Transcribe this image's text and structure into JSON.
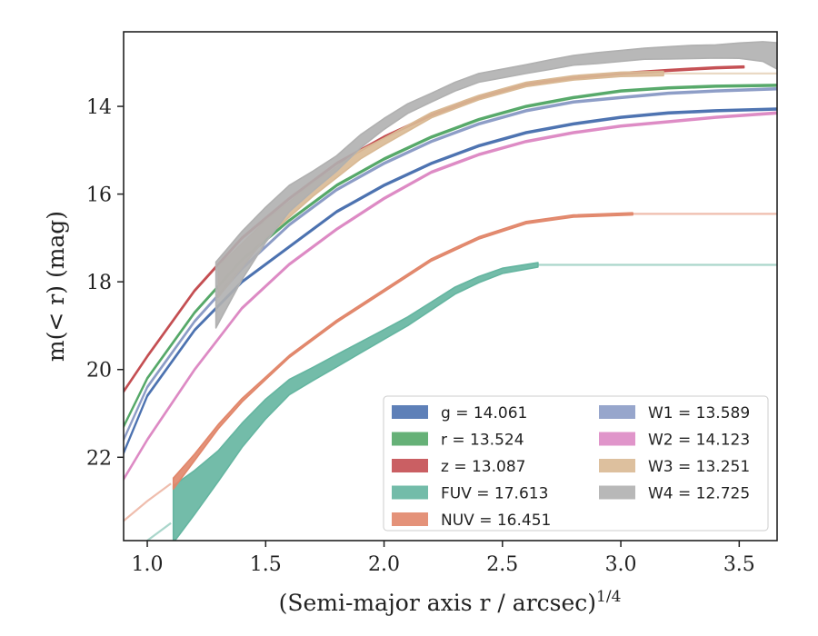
{
  "chart_data": {
    "type": "line",
    "xlabel": "(Semi-major axis r / arcsec)",
    "xlabel_sup": "1/4",
    "ylabel": "m(< r) (mag)",
    "xlim": [
      0.9,
      3.66
    ],
    "ylim": [
      23.9,
      12.3
    ],
    "xticks": [
      1.0,
      1.5,
      2.0,
      2.5,
      3.0,
      3.5
    ],
    "yticks": [
      14,
      16,
      18,
      20,
      22
    ],
    "xtick_labels": [
      "1.0",
      "1.5",
      "2.0",
      "2.5",
      "3.0",
      "3.5"
    ],
    "ytick_labels": [
      "14",
      "16",
      "18",
      "20",
      "22"
    ],
    "legend_position": "lower-right",
    "series": [
      {
        "name": "g = 14.061",
        "band": "g",
        "total_mag": 14.061,
        "color": "#4c72b0",
        "x": [
          0.9,
          1.0,
          1.2,
          1.4,
          1.6,
          1.8,
          2.0,
          2.2,
          2.4,
          2.6,
          2.8,
          3.0,
          3.2,
          3.4,
          3.66
        ],
        "y": [
          21.9,
          20.6,
          19.1,
          18.0,
          17.2,
          16.4,
          15.8,
          15.3,
          14.9,
          14.6,
          14.4,
          14.25,
          14.15,
          14.1,
          14.06
        ],
        "width": [
          0.04,
          0.04,
          0.04,
          0.04,
          0.04,
          0.04,
          0.04,
          0.04,
          0.04,
          0.04,
          0.04,
          0.04,
          0.04,
          0.04,
          0.04
        ],
        "x_faint_after": 3.66
      },
      {
        "name": "r = 13.524",
        "band": "r",
        "total_mag": 13.524,
        "color": "#55a868",
        "x": [
          0.9,
          1.0,
          1.2,
          1.4,
          1.6,
          1.8,
          2.0,
          2.2,
          2.4,
          2.6,
          2.8,
          3.0,
          3.2,
          3.4,
          3.66
        ],
        "y": [
          21.3,
          20.2,
          18.7,
          17.5,
          16.6,
          15.8,
          15.2,
          14.7,
          14.3,
          14.0,
          13.8,
          13.65,
          13.58,
          13.54,
          13.52
        ],
        "width": [
          0.04,
          0.04,
          0.04,
          0.04,
          0.04,
          0.04,
          0.04,
          0.04,
          0.04,
          0.04,
          0.04,
          0.04,
          0.04,
          0.04,
          0.04
        ],
        "x_faint_after": 3.66
      },
      {
        "name": "z = 13.087",
        "band": "z",
        "total_mag": 13.087,
        "color": "#c44e52",
        "x": [
          0.9,
          1.0,
          1.2,
          1.4,
          1.6,
          1.8,
          2.0,
          2.2,
          2.4,
          2.6,
          2.8,
          3.0,
          3.2,
          3.4,
          3.52
        ],
        "y": [
          20.5,
          19.7,
          18.2,
          17.0,
          16.1,
          15.3,
          14.7,
          14.2,
          13.8,
          13.5,
          13.35,
          13.25,
          13.18,
          13.12,
          13.1
        ],
        "width": [
          0.04,
          0.04,
          0.04,
          0.04,
          0.04,
          0.04,
          0.04,
          0.04,
          0.04,
          0.04,
          0.04,
          0.04,
          0.04,
          0.04,
          0.04
        ],
        "x_faint_after": 3.52
      },
      {
        "name": "FUV = 17.613",
        "band": "FUV",
        "total_mag": 17.613,
        "color": "#64b5a0",
        "x": [
          1.11,
          1.2,
          1.3,
          1.4,
          1.5,
          1.6,
          1.7,
          1.8,
          1.9,
          2.0,
          2.1,
          2.2,
          2.3,
          2.4,
          2.5,
          2.65
        ],
        "y": [
          23.3,
          22.8,
          22.2,
          21.5,
          20.9,
          20.4,
          20.1,
          19.8,
          19.5,
          19.2,
          18.9,
          18.55,
          18.2,
          17.95,
          17.75,
          17.613
        ],
        "width": [
          1.3,
          1.0,
          0.7,
          0.55,
          0.45,
          0.35,
          0.3,
          0.28,
          0.25,
          0.22,
          0.2,
          0.18,
          0.16,
          0.14,
          0.12,
          0.1
        ],
        "x_faint": [
          0.9,
          1.0,
          1.1
        ],
        "y_faint": [
          24.3,
          23.9,
          23.5
        ],
        "x_faint_after": 3.66
      },
      {
        "name": "NUV = 16.451",
        "band": "NUV",
        "total_mag": 16.451,
        "color": "#e1866a",
        "x": [
          1.11,
          1.2,
          1.3,
          1.4,
          1.5,
          1.6,
          1.8,
          2.0,
          2.2,
          2.4,
          2.6,
          2.8,
          3.05
        ],
        "y": [
          22.6,
          22.0,
          21.3,
          20.7,
          20.2,
          19.7,
          18.9,
          18.2,
          17.5,
          17.0,
          16.65,
          16.5,
          16.451
        ],
        "width": [
          0.25,
          0.15,
          0.1,
          0.08,
          0.06,
          0.05,
          0.05,
          0.05,
          0.05,
          0.05,
          0.05,
          0.05,
          0.05
        ],
        "x_faint": [
          0.9,
          1.0,
          1.1
        ],
        "y_faint": [
          23.45,
          23.0,
          22.6
        ],
        "x_faint_after": 3.66
      },
      {
        "name": "W1 = 13.589",
        "band": "W1",
        "total_mag": 13.589,
        "color": "#8c9cc6",
        "x": [
          0.9,
          1.0,
          1.2,
          1.4,
          1.6,
          1.8,
          2.0,
          2.2,
          2.4,
          2.6,
          2.8,
          3.0,
          3.2,
          3.4,
          3.66
        ],
        "y": [
          21.6,
          20.4,
          18.9,
          17.7,
          16.7,
          15.9,
          15.3,
          14.8,
          14.4,
          14.1,
          13.9,
          13.8,
          13.7,
          13.65,
          13.6
        ],
        "width": [
          0.04,
          0.04,
          0.04,
          0.04,
          0.04,
          0.04,
          0.04,
          0.04,
          0.04,
          0.04,
          0.04,
          0.04,
          0.04,
          0.04,
          0.04
        ],
        "x_faint_after": 3.66
      },
      {
        "name": "W2 = 14.123",
        "band": "W2",
        "total_mag": 14.123,
        "color": "#dd8ac4",
        "x": [
          0.9,
          1.0,
          1.2,
          1.3,
          1.4,
          1.6,
          1.8,
          2.0,
          2.2,
          2.4,
          2.6,
          2.8,
          3.0,
          3.2,
          3.4,
          3.66
        ],
        "y": [
          22.5,
          21.6,
          20.0,
          19.3,
          18.6,
          17.6,
          16.8,
          16.1,
          15.5,
          15.1,
          14.8,
          14.6,
          14.45,
          14.35,
          14.25,
          14.15
        ],
        "width": [
          0.04,
          0.04,
          0.04,
          0.04,
          0.04,
          0.04,
          0.04,
          0.04,
          0.04,
          0.04,
          0.04,
          0.04,
          0.04,
          0.04,
          0.04,
          0.04
        ],
        "x_faint_after": 3.66
      },
      {
        "name": "W3 = 13.251",
        "band": "W3",
        "total_mag": 13.251,
        "color": "#d9b994",
        "x": [
          1.3,
          1.5,
          1.7,
          1.9,
          2.0,
          2.2,
          2.4,
          2.6,
          2.8,
          3.0,
          3.18
        ],
        "y": [
          18.0,
          16.8,
          15.9,
          15.1,
          14.8,
          14.2,
          13.8,
          13.5,
          13.35,
          13.27,
          13.251
        ],
        "width": [
          0.7,
          0.4,
          0.3,
          0.2,
          0.15,
          0.12,
          0.1,
          0.1,
          0.1,
          0.1,
          0.1
        ],
        "x_faint_after": 3.66
      },
      {
        "name": "W4 = 12.725",
        "band": "W4",
        "total_mag": 12.725,
        "color": "#b0b0b0",
        "x": [
          1.29,
          1.4,
          1.5,
          1.6,
          1.7,
          1.8,
          1.9,
          2.0,
          2.1,
          2.2,
          2.3,
          2.4,
          2.5,
          2.6,
          2.7,
          2.8,
          2.9,
          3.0,
          3.1,
          3.2,
          3.3,
          3.4,
          3.5,
          3.6,
          3.66
        ],
        "y": [
          18.3,
          17.4,
          16.7,
          16.1,
          15.7,
          15.3,
          14.8,
          14.4,
          14.05,
          13.8,
          13.55,
          13.35,
          13.25,
          13.15,
          13.05,
          12.95,
          12.9,
          12.85,
          12.8,
          12.78,
          12.76,
          12.75,
          12.73,
          12.75,
          12.85
        ],
        "width": [
          1.5,
          1.1,
          0.8,
          0.6,
          0.45,
          0.35,
          0.3,
          0.25,
          0.22,
          0.2,
          0.2,
          0.2,
          0.2,
          0.2,
          0.22,
          0.22,
          0.25,
          0.25,
          0.25,
          0.28,
          0.3,
          0.3,
          0.35,
          0.45,
          0.6
        ]
      }
    ]
  }
}
